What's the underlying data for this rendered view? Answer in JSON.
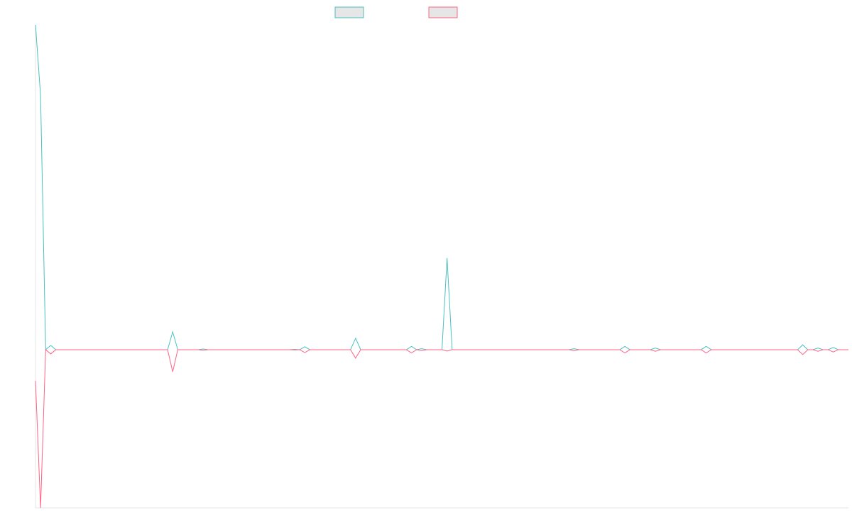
{
  "chart_data": {
    "type": "line",
    "x": [
      0,
      1,
      2,
      3,
      4,
      26,
      27,
      28,
      32,
      33,
      34,
      50,
      51,
      52,
      53,
      54,
      62,
      63,
      64,
      73,
      74,
      75,
      76,
      77,
      80,
      81,
      82,
      105,
      106,
      107,
      115,
      116,
      117,
      121,
      122,
      123,
      131,
      132,
      133,
      150,
      151,
      152,
      153,
      154,
      155,
      156,
      157,
      158,
      160
    ],
    "series": [
      {
        "color": "#4bc0c0",
        "values": [
          100,
          78.2,
          0,
          1.3,
          0,
          0,
          5.5,
          0,
          0,
          0.2,
          0,
          0,
          0.1,
          0,
          0.9,
          0,
          0,
          3.5,
          0,
          0,
          1,
          0,
          0.3,
          0,
          0,
          28.2,
          0,
          0,
          0.3,
          0,
          0,
          1,
          0,
          0,
          0.5,
          0,
          0,
          1,
          0,
          0,
          1.5,
          0,
          0,
          0.5,
          0,
          0,
          0.7,
          0,
          0
        ]
      },
      {
        "color": "#ff6384",
        "values": [
          -9.6,
          -48.7,
          0,
          -1.3,
          0,
          0,
          -6.8,
          0,
          0,
          -0.2,
          0,
          0,
          -0.1,
          0,
          -0.9,
          0,
          0,
          -2.6,
          0,
          0,
          -1,
          0,
          -0.3,
          0,
          0,
          -0.4,
          0,
          0,
          -0.3,
          0,
          0,
          -1,
          0,
          0,
          -0.5,
          0,
          0,
          -1,
          0,
          0,
          -1.5,
          0,
          0,
          -0.5,
          0,
          0,
          -0.7,
          0,
          0
        ]
      }
    ],
    "xlim": [
      0,
      160
    ],
    "ylim": [
      -48.7,
      100
    ]
  }
}
